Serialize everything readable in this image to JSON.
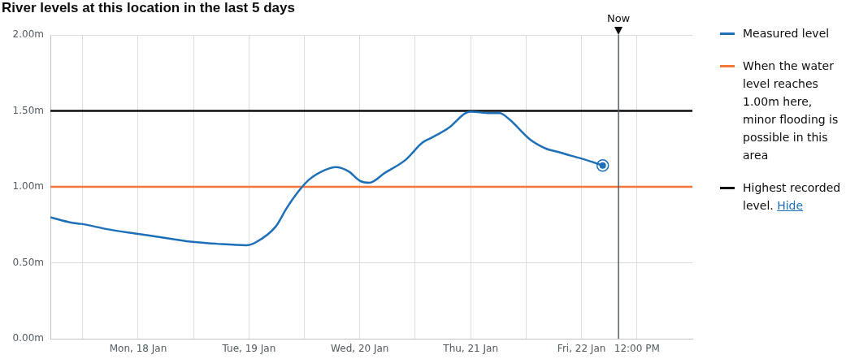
{
  "chart_data": {
    "type": "line",
    "title": "River levels at this location in the last 5 days",
    "x": [
      "--01-17T05:00",
      "--01-17T09:25",
      "--01-17T11:40",
      "--01-17T17:30",
      "--01-18T00:00",
      "--01-18T06:30",
      "--01-18T11:00",
      "--01-18T17:00",
      "--01-18T23:25",
      "--01-19T01:30",
      "--01-19T05:50",
      "--01-19T08:10",
      "--01-19T10:35",
      "--01-19T12:55",
      "--01-19T16:25",
      "--01-19T18:45",
      "--01-19T21:40",
      "--01-20T00:00",
      "--01-20T02:05",
      "--01-20T05:20",
      "--01-20T10:00",
      "--01-20T13:30",
      "--01-20T15:20",
      "--01-20T19:20",
      "--01-20T22:50",
      "--01-21T00:00",
      "--01-21T04:10",
      "--01-21T06:15",
      "--01-21T08:20",
      "--01-21T12:55",
      "--01-21T16:25",
      "--01-21T18:55",
      "--01-21T21:40",
      "--01-22T00:40",
      "--01-22T04:35"
    ],
    "series": [
      {
        "name": "Measured level",
        "color": "#1d70b8",
        "values": [
          0.8,
          0.765,
          0.756,
          0.72,
          0.69,
          0.66,
          0.64,
          0.625,
          0.615,
          0.635,
          0.74,
          0.86,
          0.965,
          1.045,
          1.11,
          1.13,
          1.1,
          1.04,
          1.027,
          1.09,
          1.18,
          1.29,
          1.32,
          1.39,
          1.485,
          1.495,
          1.485,
          1.485,
          1.445,
          1.31,
          1.25,
          1.23,
          1.205,
          1.18,
          1.14
        ]
      }
    ],
    "xlim": [
      "--01-17T05:00",
      "--01-23T00:00"
    ],
    "xticks": [
      {
        "value": "--01-17T12:00",
        "label": null
      },
      {
        "value": "--01-18T00:00",
        "label": "Mon, 18 Jan"
      },
      {
        "value": "--01-18T12:00",
        "label": null
      },
      {
        "value": "--01-19T00:00",
        "label": "Tue, 19 Jan"
      },
      {
        "value": "--01-19T12:00",
        "label": null
      },
      {
        "value": "--01-20T00:00",
        "label": "Wed, 20 Jan"
      },
      {
        "value": "--01-20T12:00",
        "label": null
      },
      {
        "value": "--01-21T00:00",
        "label": "Thu, 21 Jan"
      },
      {
        "value": "--01-21T12:00",
        "label": null
      },
      {
        "value": "--01-22T00:00",
        "label": "Fri, 22 Jan"
      },
      {
        "value": "--01-22T12:00",
        "label": "12:00 PM"
      }
    ],
    "ylim": [
      0,
      2
    ],
    "yticks": [
      {
        "value": 0,
        "label": "0.00m"
      },
      {
        "value": 0.5,
        "label": "0.50m"
      },
      {
        "value": 1,
        "label": "1.00m"
      },
      {
        "value": 1.5,
        "label": "1.50m"
      },
      {
        "value": 2,
        "label": "2.00m"
      }
    ],
    "ref_lines": [
      {
        "axis": "y",
        "value": 1,
        "label": "When the water level reaches 1.00m here, minor flooding is possible in this area",
        "color": "#f47738"
      },
      {
        "axis": "y",
        "value": 1.5,
        "label": "Highest recorded level.",
        "color": "#0b0c0c"
      },
      {
        "axis": "x",
        "value": "--01-22T08:00",
        "label": "Now",
        "color": "#505a5f"
      }
    ],
    "annotations": [
      "Hide"
    ],
    "grid": true,
    "legend": "right"
  }
}
